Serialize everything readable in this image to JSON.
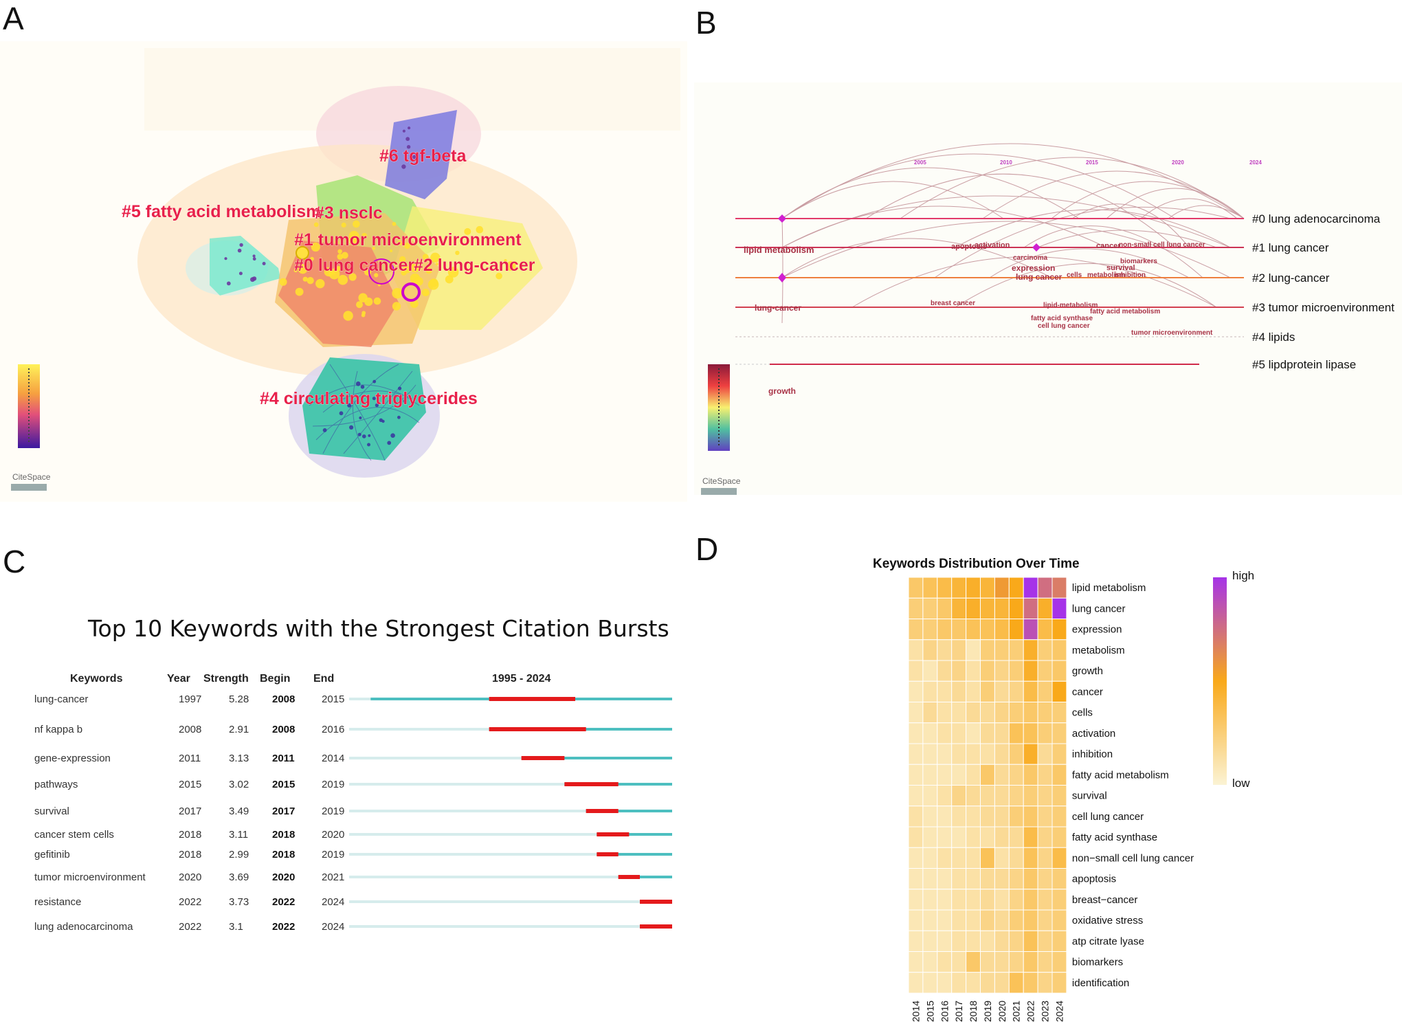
{
  "panels": {
    "a": "A",
    "b": "B",
    "c": "C",
    "d": "D"
  },
  "panel_a": {
    "clusters": [
      "#6 tgf-beta",
      "#5 fatty acid metabolism",
      "#3 nsclc",
      "#1 tumor microenvironment",
      "#0 lung cancer",
      "#2 lung-cancer",
      "#4 circulating triglycerides"
    ],
    "logo": "CiteSpace",
    "colors": {
      "label": "#e8204a"
    }
  },
  "panel_b": {
    "years": [
      "2005",
      "2010",
      "2015",
      "2020",
      "2024"
    ],
    "clusters": [
      "#0 lung adenocarcinoma",
      "#1 lung cancer",
      "#2 lung-cancer",
      "#3 tumor microenvironment",
      "#4 lipids",
      "#5 lipdprotein lipase"
    ],
    "keywords": [
      "lipid metabolism",
      "apoptosis",
      "activation",
      "carcinoma",
      "expression",
      "lung cancer",
      "cancer",
      "non-small cell lung cancer",
      "biomarkers",
      "survival",
      "cells",
      "metabolism",
      "inhibition",
      "lipid-metabolism",
      "fatty acid metabolism",
      "fatty acid synthase",
      "cell lung cancer",
      "lung-cancer",
      "breast cancer",
      "tumor microenvironment",
      "growth"
    ],
    "logo": "CiteSpace"
  },
  "chart_data": [
    {
      "type": "table",
      "title": "Top 10 Keywords with the Strongest Citation Bursts",
      "columns": [
        "Keywords",
        "Year",
        "Strength",
        "Begin",
        "End",
        "1995 - 2024"
      ],
      "range": [
        1995,
        2024
      ],
      "rows": [
        {
          "keyword": "lung-cancer",
          "year": 1997,
          "strength": "5.28",
          "begin": 2008,
          "end": 2015
        },
        {
          "keyword": "nf kappa b",
          "year": 2008,
          "strength": "2.91",
          "begin": 2008,
          "end": 2016
        },
        {
          "keyword": "gene-expression",
          "year": 2011,
          "strength": "3.13",
          "begin": 2011,
          "end": 2014
        },
        {
          "keyword": "pathways",
          "year": 2015,
          "strength": "3.02",
          "begin": 2015,
          "end": 2019
        },
        {
          "keyword": "survival",
          "year": 2017,
          "strength": "3.49",
          "begin": 2017,
          "end": 2019
        },
        {
          "keyword": "cancer stem cells",
          "year": 2018,
          "strength": "3.11",
          "begin": 2018,
          "end": 2020
        },
        {
          "keyword": "gefitinib",
          "year": 2018,
          "strength": "2.99",
          "begin": 2018,
          "end": 2019
        },
        {
          "keyword": "tumor microenvironment",
          "year": 2020,
          "strength": "3.69",
          "begin": 2020,
          "end": 2021
        },
        {
          "keyword": "resistance",
          "year": 2022,
          "strength": "3.73",
          "begin": 2022,
          "end": 2024
        },
        {
          "keyword": "lung adenocarcinoma",
          "year": 2022,
          "strength": "3.1",
          "begin": 2022,
          "end": 2024
        }
      ],
      "colors": {
        "burst": "#e41a1c",
        "active": "#4dbfc0",
        "inactive": "#d6ecec"
      }
    },
    {
      "type": "heatmap",
      "title": "Keywords Distribution Over Time",
      "x": [
        "2014",
        "2015",
        "2016",
        "2017",
        "2018",
        "2019",
        "2020",
        "2021",
        "2022",
        "2023",
        "2024"
      ],
      "y": [
        "lipid metabolism",
        "lung cancer",
        "expression",
        "metabolism",
        "growth",
        "cancer",
        "cells",
        "activation",
        "inhibition",
        "fatty acid metabolism",
        "survival",
        "cell lung cancer",
        "fatty acid synthase",
        "non−small cell lung cancer",
        "apoptosis",
        "breast−cancer",
        "oxidative stress",
        "atp citrate lyase",
        "biomarkers",
        "identification"
      ],
      "values": [
        [
          0.35,
          0.4,
          0.45,
          0.5,
          0.55,
          0.5,
          0.65,
          0.6,
          1.0,
          0.8,
          0.75
        ],
        [
          0.3,
          0.3,
          0.35,
          0.5,
          0.55,
          0.5,
          0.5,
          0.6,
          0.8,
          0.55,
          1.0
        ],
        [
          0.3,
          0.3,
          0.35,
          0.35,
          0.4,
          0.4,
          0.45,
          0.6,
          0.9,
          0.45,
          0.6
        ],
        [
          0.15,
          0.25,
          0.2,
          0.25,
          0.1,
          0.3,
          0.3,
          0.3,
          0.55,
          0.3,
          0.35
        ],
        [
          0.15,
          0.1,
          0.2,
          0.25,
          0.15,
          0.3,
          0.25,
          0.3,
          0.55,
          0.3,
          0.35
        ],
        [
          0.1,
          0.15,
          0.15,
          0.2,
          0.15,
          0.3,
          0.2,
          0.25,
          0.45,
          0.3,
          0.6
        ],
        [
          0.1,
          0.2,
          0.15,
          0.15,
          0.2,
          0.2,
          0.25,
          0.3,
          0.35,
          0.3,
          0.3
        ],
        [
          0.1,
          0.1,
          0.15,
          0.15,
          0.1,
          0.2,
          0.2,
          0.4,
          0.4,
          0.3,
          0.3
        ],
        [
          0.1,
          0.1,
          0.1,
          0.15,
          0.15,
          0.15,
          0.2,
          0.3,
          0.55,
          0.2,
          0.3
        ],
        [
          0.1,
          0.1,
          0.1,
          0.1,
          0.15,
          0.35,
          0.2,
          0.25,
          0.35,
          0.25,
          0.35
        ],
        [
          0.1,
          0.1,
          0.15,
          0.25,
          0.2,
          0.2,
          0.2,
          0.25,
          0.3,
          0.25,
          0.3
        ],
        [
          0.15,
          0.1,
          0.1,
          0.15,
          0.15,
          0.2,
          0.2,
          0.3,
          0.35,
          0.25,
          0.3
        ],
        [
          0.15,
          0.1,
          0.1,
          0.1,
          0.15,
          0.15,
          0.2,
          0.2,
          0.45,
          0.25,
          0.3
        ],
        [
          0.1,
          0.1,
          0.15,
          0.15,
          0.15,
          0.4,
          0.15,
          0.2,
          0.4,
          0.25,
          0.45
        ],
        [
          0.1,
          0.1,
          0.1,
          0.15,
          0.15,
          0.2,
          0.2,
          0.25,
          0.35,
          0.25,
          0.3
        ],
        [
          0.1,
          0.1,
          0.1,
          0.15,
          0.15,
          0.2,
          0.15,
          0.25,
          0.35,
          0.25,
          0.3
        ],
        [
          0.1,
          0.1,
          0.1,
          0.15,
          0.15,
          0.25,
          0.2,
          0.3,
          0.35,
          0.25,
          0.3
        ],
        [
          0.1,
          0.1,
          0.1,
          0.15,
          0.15,
          0.15,
          0.2,
          0.25,
          0.4,
          0.25,
          0.3
        ],
        [
          0.1,
          0.1,
          0.15,
          0.15,
          0.35,
          0.2,
          0.2,
          0.25,
          0.35,
          0.25,
          0.3
        ],
        [
          0.1,
          0.1,
          0.1,
          0.15,
          0.15,
          0.2,
          0.2,
          0.4,
          0.35,
          0.25,
          0.3
        ]
      ],
      "legend": {
        "high": "high",
        "low": "low"
      },
      "colors": {
        "low": "#fbf3d4",
        "mid": "#f9a91a",
        "high": "#a633e8"
      }
    }
  ]
}
